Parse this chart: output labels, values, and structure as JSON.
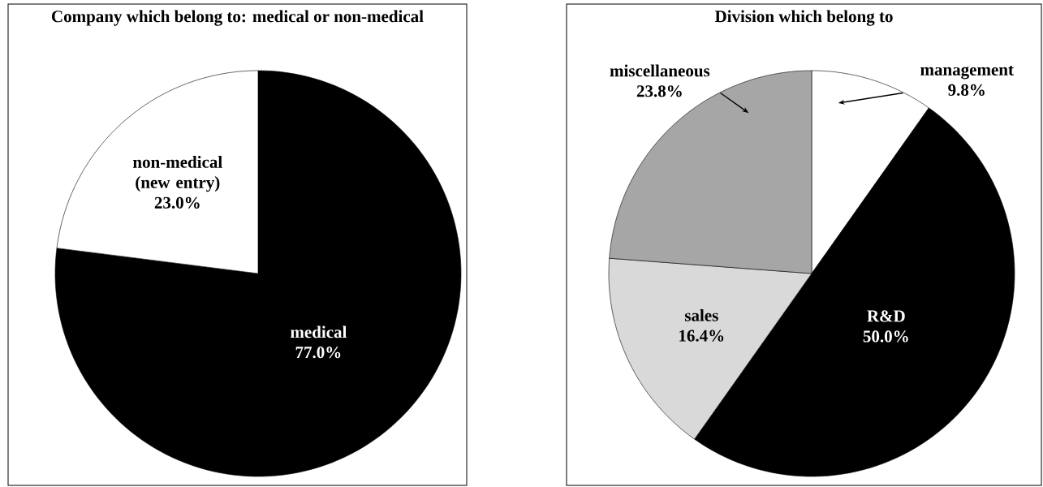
{
  "chart_data": [
    {
      "type": "pie",
      "title": "Company which belong to: medical or non-medical",
      "categories": [
        "medical",
        "non-medical (new entry)"
      ],
      "values": [
        77.0,
        23.0
      ],
      "colors": [
        "#000000",
        "#ffffff"
      ],
      "value_labels": [
        "77.0%",
        "23.0%"
      ]
    },
    {
      "type": "pie",
      "title": "Division which belong to",
      "categories": [
        "management",
        "R&D",
        "sales",
        "miscellaneous"
      ],
      "values": [
        9.8,
        50.0,
        16.4,
        23.8
      ],
      "colors": [
        "#ffffff",
        "#000000",
        "#d9d9d9",
        "#a6a6a6"
      ],
      "value_labels": [
        "9.8%",
        "50.0%",
        "16.4%",
        "23.8%"
      ]
    }
  ]
}
